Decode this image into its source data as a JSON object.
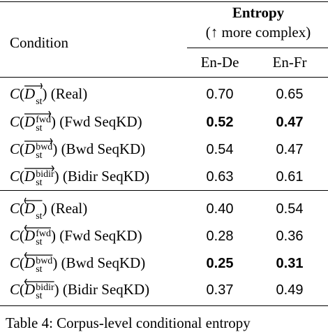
{
  "header": {
    "group_title": "Entropy",
    "group_subtitle": "(↑ more complex)",
    "condition": "Condition",
    "columns": [
      "En-De",
      "En-Fr"
    ]
  },
  "table": {
    "groups": [
      {
        "rows": [
          {
            "func": "C",
            "open": "(",
            "var": "D",
            "sub": "st",
            "close": ")",
            "label": "(Real)",
            "values": [
              "0.70",
              "0.65"
            ],
            "bold": [
              false,
              false
            ]
          },
          {
            "func": "C",
            "open": "(",
            "var": "D",
            "sub": "st",
            "sup": "fwd",
            "close": ")",
            "label": "(Fwd SeqKD)",
            "values": [
              "0.52",
              "0.47"
            ],
            "bold": [
              true,
              true
            ]
          },
          {
            "func": "C",
            "open": "(",
            "var": "D",
            "sub": "st",
            "sup": "bwd",
            "close": ")",
            "label": "(Bwd SeqKD)",
            "values": [
              "0.54",
              "0.47"
            ],
            "bold": [
              false,
              false
            ]
          },
          {
            "func": "C",
            "open": "(",
            "var": "D",
            "sub": "st",
            "sup": "bidir",
            "close": ")",
            "label": "(Bidir SeqKD)",
            "values": [
              "0.63",
              "0.61"
            ],
            "bold": [
              false,
              false
            ]
          }
        ]
      },
      {
        "rows": [
          {
            "func": "C",
            "open": "(",
            "var": "D",
            "sub": "st",
            "close": ")",
            "label": "(Real)",
            "values": [
              "0.40",
              "0.54"
            ],
            "bold": [
              false,
              false
            ]
          },
          {
            "func": "C",
            "open": "(",
            "var": "D",
            "sub": "st",
            "sup": "fwd",
            "close": ")",
            "label": "(Fwd SeqKD)",
            "values": [
              "0.28",
              "0.36"
            ],
            "bold": [
              false,
              false
            ]
          },
          {
            "func": "C",
            "open": "(",
            "var": "D",
            "sub": "st",
            "sup": "bwd",
            "close": ")",
            "label": "(Bwd SeqKD)",
            "values": [
              "0.25",
              "0.31"
            ],
            "bold": [
              true,
              true
            ]
          },
          {
            "func": "C",
            "open": "(",
            "var": "D",
            "sub": "st",
            "sup": "bidir",
            "close": ")",
            "label": "(Bidir SeqKD)",
            "values": [
              "0.37",
              "0.49"
            ],
            "bold": [
              false,
              false
            ]
          }
        ]
      }
    ]
  },
  "caption": "Table 4: Corpus-level conditional entropy"
}
